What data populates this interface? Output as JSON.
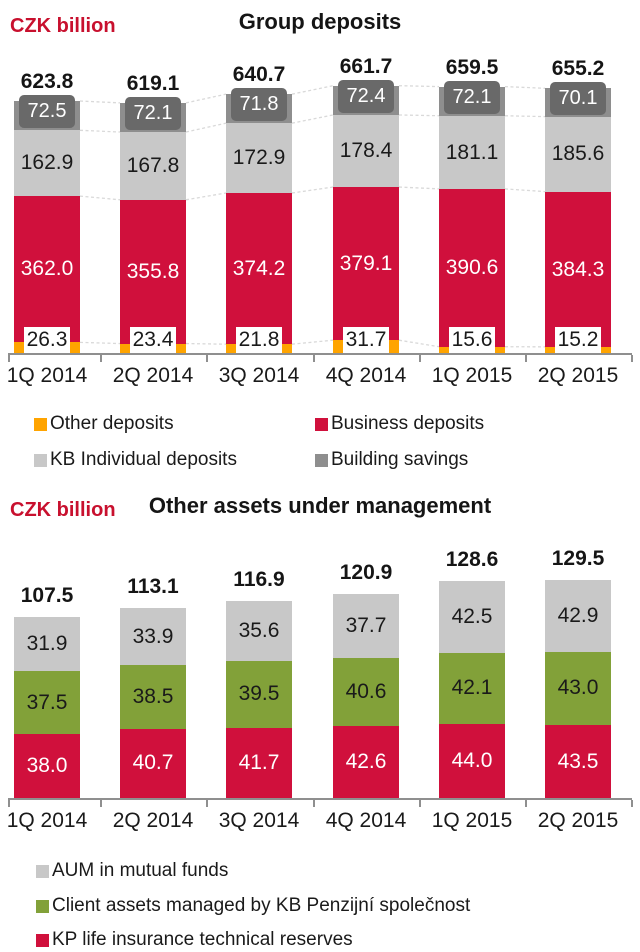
{
  "colors": {
    "red": "#D0103C",
    "orange": "#FFA400",
    "light_gray": "#C8C8C8",
    "dark_gray": "#8E8E8E",
    "dark_gray_box": "#696969",
    "green": "#82A139",
    "unit_red": "#C8102E",
    "connector": "#D9D9D9",
    "axis": "#8F8F8F",
    "text_dark": "#1A1A1A",
    "text_white": "#FFFFFF"
  },
  "chart_data": [
    {
      "type": "bar",
      "stacked": true,
      "title": "Group deposits",
      "unit": "CZK billion",
      "categories": [
        "1Q 2014",
        "2Q 2014",
        "3Q 2014",
        "4Q 2014",
        "1Q 2015",
        "2Q 2015"
      ],
      "totals": [
        623.8,
        619.1,
        640.7,
        661.7,
        659.5,
        655.2
      ],
      "series": [
        {
          "name": "Other deposits",
          "color_key": "orange",
          "label_style": "white-box",
          "values": [
            26.3,
            23.4,
            21.8,
            31.7,
            15.6,
            15.2
          ]
        },
        {
          "name": "Business deposits",
          "color_key": "red",
          "label_style": "light",
          "values": [
            362.0,
            355.8,
            374.2,
            379.1,
            390.6,
            384.3
          ]
        },
        {
          "name": "KB Individual deposits",
          "color_key": "light_gray",
          "label_style": "dark",
          "values": [
            162.9,
            167.8,
            172.9,
            178.4,
            181.1,
            185.6
          ]
        },
        {
          "name": "Building savings",
          "color_key": "dark_gray",
          "label_style": "dark-box",
          "values": [
            72.5,
            72.1,
            71.8,
            72.4,
            72.1,
            70.1
          ]
        }
      ],
      "legend_rows": [
        [
          {
            "label": "Other deposits",
            "color_key": "orange"
          },
          {
            "label": "Business deposits",
            "color_key": "red"
          }
        ],
        [
          {
            "label": "KB Individual deposits",
            "color_key": "light_gray"
          },
          {
            "label": "Building savings",
            "color_key": "dark_gray"
          }
        ]
      ],
      "connectors": true,
      "ylim": [
        0,
        700
      ],
      "grid": false,
      "legend_position": "bottom"
    },
    {
      "type": "bar",
      "stacked": true,
      "title": "Other assets under management",
      "unit": "CZK billion",
      "categories": [
        "1Q 2014",
        "2Q 2014",
        "3Q 2014",
        "4Q 2014",
        "1Q 2015",
        "2Q 2015"
      ],
      "totals": [
        107.5,
        113.1,
        116.9,
        120.9,
        128.6,
        129.5
      ],
      "series": [
        {
          "name": "KP life insurance technical reserves",
          "color_key": "red",
          "label_style": "light",
          "values": [
            38.0,
            40.7,
            41.7,
            42.6,
            44.0,
            43.5
          ]
        },
        {
          "name": "Client assets managed by KB Penzijní společnost",
          "color_key": "green",
          "label_style": "dark",
          "values": [
            37.5,
            38.5,
            39.5,
            40.6,
            42.1,
            43.0
          ]
        },
        {
          "name": "AUM in mutual funds",
          "color_key": "light_gray",
          "label_style": "dark",
          "values": [
            31.9,
            33.9,
            35.6,
            37.7,
            42.5,
            42.9
          ]
        }
      ],
      "legend_rows": [
        [
          {
            "label": "AUM in mutual funds",
            "color_key": "light_gray"
          }
        ],
        [
          {
            "label": "Client assets managed by KB Penzijní společnost",
            "color_key": "green"
          }
        ],
        [
          {
            "label": "KP life insurance technical reserves",
            "color_key": "red"
          }
        ]
      ],
      "connectors": false,
      "ylim": [
        0,
        135
      ],
      "grid": false,
      "legend_position": "bottom"
    }
  ]
}
